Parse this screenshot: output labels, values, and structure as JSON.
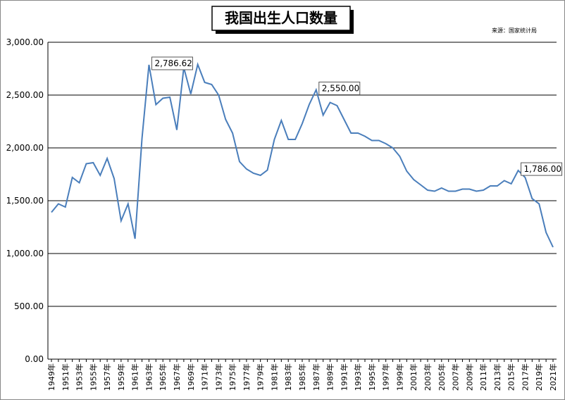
{
  "chart_data": {
    "type": "line",
    "title": "我国出生人口数量",
    "source": "来源：国家统计局",
    "categories": [
      "1949年",
      null,
      "1951年",
      null,
      "1953年",
      null,
      "1955年",
      null,
      "1957年",
      null,
      "1959年",
      null,
      "1961年",
      null,
      "1963年",
      null,
      "1965年",
      null,
      "1967年",
      null,
      "1969年",
      null,
      "1971年",
      null,
      "1973年",
      null,
      "1975年",
      null,
      "1977年",
      null,
      "1979年",
      null,
      "1981年",
      null,
      "1983年",
      null,
      "1985年",
      null,
      "1987年",
      null,
      "1989年",
      null,
      "1991年",
      null,
      "1993年",
      null,
      "1995年",
      null,
      "1997年",
      null,
      "1999年",
      null,
      "2001年",
      null,
      "2003年",
      null,
      "2005年",
      null,
      "2007年",
      null,
      "2009年",
      null,
      "2011年",
      null,
      "2013年",
      null,
      "2015年",
      null,
      "2017年",
      null,
      "2019年",
      null,
      "2021年"
    ],
    "values": [
      1390,
      1470,
      1440,
      1720,
      1670,
      1850,
      1860,
      1740,
      1900,
      1710,
      1310,
      1470,
      1140,
      2090,
      2786.62,
      2410,
      2470,
      2480,
      2170,
      2760,
      2510,
      2790,
      2620,
      2600,
      2500,
      2270,
      2140,
      1870,
      1800,
      1760,
      1740,
      1790,
      2080,
      2260,
      2080,
      2080,
      2230,
      2410,
      2550,
      2310,
      2430,
      2400,
      2270,
      2140,
      2140,
      2110,
      2070,
      2070,
      2040,
      2000,
      1920,
      1780,
      1700,
      1650,
      1600,
      1590,
      1620,
      1590,
      1590,
      1610,
      1610,
      1590,
      1600,
      1640,
      1640,
      1690,
      1660,
      1786,
      1720,
      1520,
      1470,
      1200,
      1060
    ],
    "value_labels": [
      null,
      null,
      null,
      null,
      null,
      null,
      null,
      null,
      null,
      null,
      null,
      null,
      null,
      null,
      "2,786.62",
      null,
      null,
      null,
      null,
      null,
      null,
      null,
      null,
      null,
      null,
      null,
      null,
      null,
      null,
      null,
      null,
      null,
      null,
      null,
      null,
      null,
      null,
      null,
      "2,550.00",
      null,
      null,
      null,
      null,
      null,
      null,
      null,
      null,
      null,
      null,
      null,
      null,
      null,
      null,
      null,
      null,
      null,
      null,
      null,
      null,
      null,
      null,
      null,
      null,
      null,
      null,
      null,
      null,
      "1,786.00",
      null,
      null,
      null,
      null,
      null
    ],
    "color": "#4a7ebb",
    "ylim": [
      0,
      3000
    ],
    "yticks": [
      {
        "value": 0,
        "label": "0.00"
      },
      {
        "value": 500,
        "label": "500.00"
      },
      {
        "value": 1000,
        "label": "1,000.00"
      },
      {
        "value": 1500,
        "label": "1,500.00"
      },
      {
        "value": 2000,
        "label": "2,000.00"
      },
      {
        "value": 2500,
        "label": "2,500.00"
      },
      {
        "value": 3000,
        "label": "3,000.00"
      }
    ],
    "grid": true
  }
}
